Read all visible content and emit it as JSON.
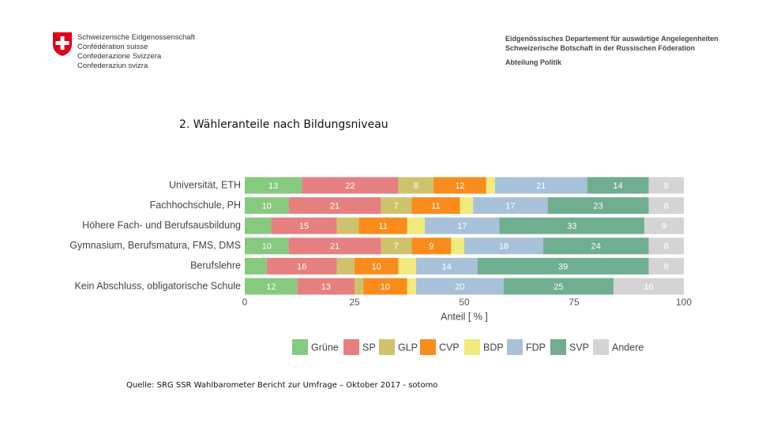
{
  "header": {
    "left": [
      "Schweizerische Eidgenossenschaft",
      "Confédération suisse",
      "Confederazione Svizzera",
      "Confederaziun svizra"
    ],
    "right": [
      "Eidgenössisches Departement für auswärtige Angelegenheiten",
      "Schweizerische Botschaft in der Russischen Föderation",
      "Abteilung Politik"
    ]
  },
  "slide_title": "2. Wähleranteile nach Bildungsniveau",
  "source": "Quelle: SRG SSR Wahlbarometer Bericht zur Umfrage – Oktober 2017 - sotomo",
  "chart_data": {
    "type": "bar",
    "orientation": "horizontal",
    "stacked": true,
    "x_label": "Anteil [ % ]",
    "categories": [
      "Universität, ETH",
      "Fachhochschule, PH",
      "Höhere Fach- und Berufsausbildung",
      "Gymnasium, Berufsmatura, FMS, DMS",
      "Berufslehre",
      "Kein Abschluss, obligatorische Schule"
    ],
    "xlim": [
      0,
      100
    ],
    "xticks": [
      0,
      25,
      50,
      75,
      100
    ],
    "grid": false,
    "legend": "bottom",
    "series": [
      {
        "name": "Grüne",
        "color": "#86c97f",
        "values": [
          13,
          10,
          6,
          10,
          5,
          12
        ],
        "value_labels": [
          "13",
          "10",
          null,
          "10",
          null,
          "12"
        ]
      },
      {
        "name": "SP",
        "color": "#e68080",
        "values": [
          22,
          21,
          15,
          21,
          16,
          13
        ],
        "value_labels": [
          "22",
          "21",
          "15",
          "21",
          "16",
          "13"
        ]
      },
      {
        "name": "GLP",
        "color": "#cfc26c",
        "values": [
          8,
          7,
          5,
          7,
          4,
          2
        ],
        "value_labels": [
          "8",
          "7",
          null,
          "7",
          null,
          null
        ]
      },
      {
        "name": "CVP",
        "color": "#f98c1c",
        "values": [
          12,
          11,
          11,
          9,
          10,
          10
        ],
        "value_labels": [
          "12",
          "11",
          "11",
          "9",
          "10",
          "10"
        ]
      },
      {
        "name": "BDP",
        "color": "#f1eb7d",
        "values": [
          2,
          3,
          4,
          3,
          4,
          2
        ],
        "value_labels": [
          null,
          null,
          null,
          null,
          null,
          null
        ]
      },
      {
        "name": "FDP",
        "color": "#a7c1d9",
        "values": [
          21,
          17,
          17,
          18,
          14,
          20
        ],
        "value_labels": [
          "21",
          "17",
          "17",
          "18",
          "14",
          "20"
        ]
      },
      {
        "name": "SVP",
        "color": "#6fae8f",
        "values": [
          14,
          23,
          33,
          24,
          39,
          25
        ],
        "value_labels": [
          "14",
          "23",
          "33",
          "24",
          "39",
          "25"
        ]
      },
      {
        "name": "Andere",
        "color": "#d4d4d4",
        "values": [
          8,
          8,
          9,
          8,
          8,
          16
        ],
        "value_labels": [
          "8",
          "8",
          "9",
          "8",
          "8",
          "16"
        ]
      }
    ]
  }
}
